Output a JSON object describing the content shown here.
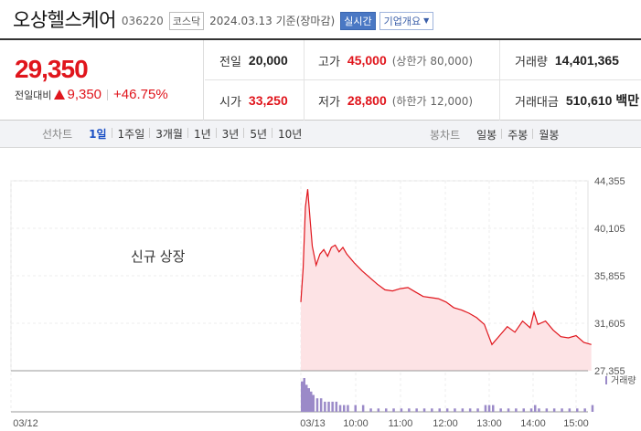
{
  "header": {
    "name": "오상헬스케어",
    "code": "036220",
    "market_badge": "코스닥",
    "as_of": "2024.03.13 기준(장마감)",
    "realtime_label": "실시간",
    "company_label": "기업개요"
  },
  "price": {
    "current": "29,350",
    "change_label": "전일대비",
    "change": "9,350",
    "change_pct": "+46.75%"
  },
  "stats": {
    "prev_close_label": "전일",
    "prev_close": "20,000",
    "high_label": "고가",
    "high": "45,000",
    "upper_limit": "(상한가 80,000)",
    "volume_label": "거래량",
    "volume": "14,401,365",
    "open_label": "시가",
    "open": "33,250",
    "low_label": "저가",
    "low": "28,800",
    "lower_limit": "(하한가 12,000)",
    "turnover_label": "거래대금",
    "turnover": "510,610 백만"
  },
  "tabs": {
    "line_label": "선차트",
    "line_items": [
      "1일",
      "1주일",
      "3개월",
      "1년",
      "3년",
      "5년",
      "10년"
    ],
    "active": "1일",
    "candle_label": "봉차트",
    "candle_items": [
      "일봉",
      "주봉",
      "월봉"
    ]
  },
  "colors": {
    "up": "#e0151c",
    "down": "#1a4fc4",
    "line": "#e0151c",
    "area": "#fde3e5",
    "volume": "#9b8ac8"
  },
  "chart_data": {
    "type": "area",
    "annotation": "신규 상장",
    "x_ticks": [
      "03/12",
      "03/13",
      "10:00",
      "11:00",
      "12:00",
      "13:00",
      "14:00",
      "15:00"
    ],
    "y_ticks": [
      "44,355",
      "40,105",
      "35,855",
      "31,605",
      "27,355"
    ],
    "ylim": [
      27355,
      44355
    ],
    "volume_label": "거래량",
    "x": [
      "09:00",
      "09:03",
      "09:06",
      "09:09",
      "09:12",
      "09:15",
      "09:20",
      "09:25",
      "09:30",
      "09:35",
      "09:40",
      "09:45",
      "09:50",
      "09:55",
      "10:00",
      "10:10",
      "10:20",
      "10:30",
      "10:40",
      "10:50",
      "11:00",
      "11:10",
      "11:20",
      "11:30",
      "11:40",
      "11:50",
      "12:00",
      "12:10",
      "12:20",
      "12:30",
      "12:40",
      "12:50",
      "13:00",
      "13:05",
      "13:10",
      "13:20",
      "13:30",
      "13:40",
      "13:50",
      "14:00",
      "14:05",
      "14:10",
      "14:20",
      "14:30",
      "14:40",
      "14:50",
      "15:00",
      "15:10",
      "15:20"
    ],
    "values": [
      33500,
      36500,
      42000,
      43600,
      41000,
      38500,
      36800,
      37800,
      38200,
      37600,
      38400,
      38600,
      38000,
      38400,
      37800,
      37000,
      36300,
      35700,
      35100,
      34600,
      34500,
      34700,
      34800,
      34400,
      34000,
      33900,
      33800,
      33500,
      33000,
      32800,
      32500,
      32100,
      31500,
      30600,
      29700,
      30500,
      31300,
      30800,
      31800,
      31200,
      32600,
      31500,
      31800,
      31000,
      30400,
      30300,
      30500,
      29900,
      29700
    ],
    "volume": [
      9,
      10,
      8,
      7,
      6,
      5,
      4,
      4,
      3,
      3,
      3,
      3,
      2,
      2,
      2,
      2,
      2,
      1,
      1,
      1,
      1,
      1,
      1,
      1,
      1,
      1,
      1,
      1,
      1,
      1,
      1,
      1,
      2,
      2,
      2,
      1,
      1,
      1,
      1,
      1,
      2,
      1,
      1,
      1,
      1,
      1,
      1,
      1,
      2
    ]
  }
}
